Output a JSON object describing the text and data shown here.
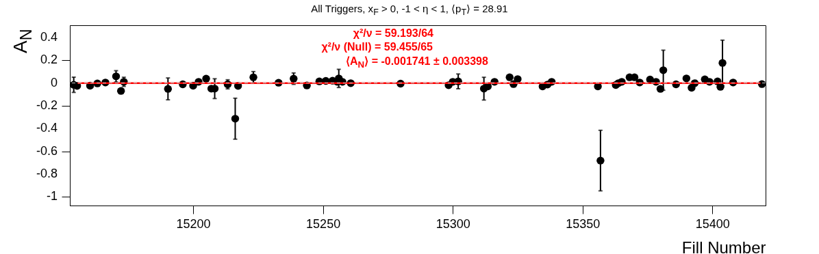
{
  "chart_data": {
    "type": "scatter",
    "title": "All Triggers, x$_{F}$ > 0, -1 < η < 1, ⟨p$_{T}$⟩ = 28.91",
    "xlabel": "Fill Number",
    "ylabel": "A$_{N}$",
    "annotations": [
      "χ²/ν = 59.193/64",
      "χ²/ν (Null) = 59.455/65",
      "⟨A$_{N}$⟩ = -0.001741 ± 0.003398"
    ],
    "xlim": [
      15152.5,
      15420.5
    ],
    "xticks": [
      15200,
      15250,
      15300,
      15350,
      15400
    ],
    "ylim": [
      -1.077,
      0.507
    ],
    "yticks": [
      -1,
      -0.8,
      -0.6,
      -0.4,
      -0.2,
      0,
      0.2,
      0.4
    ],
    "grid": false,
    "legend": false,
    "ref_lines": [
      {
        "axis": "y",
        "value": 0,
        "color": "#c8c8c8",
        "line_style": "dashed"
      }
    ],
    "series": [
      {
        "type": "scatter",
        "color": "#000000",
        "marker": "circle",
        "x": [
          15154,
          15155.3,
          15160.3,
          15163.1,
          15166.2,
          15170.3,
          15172.2,
          15173.3,
          15190.3,
          15196,
          15200,
          15202.1,
          15205,
          15207,
          15208.3,
          15213.3,
          15216.2,
          15217.3,
          15223.2,
          15232.9,
          15238.7,
          15243.8,
          15248.6,
          15251.1,
          15253.7,
          15255.5,
          15256.1,
          15257.5,
          15260.7,
          15279.9,
          15298.4,
          15300,
          15302.1,
          15312,
          15313.5,
          15316.1,
          15321.9,
          15323.4,
          15325,
          15334.6,
          15336.5,
          15338.1,
          15355.9,
          15356.9,
          15362.8,
          15363.8,
          15365.1,
          15368.1,
          15370,
          15372,
          15376,
          15378.3,
          15380,
          15381.1,
          15386,
          15390,
          15392,
          15393.2,
          15397.1,
          15398.9,
          15402,
          15403.1,
          15403.9,
          15408,
          15419.1
        ],
        "values": [
          -0.016,
          -0.026,
          -0.024,
          -0.004,
          0.004,
          0.058,
          -0.07,
          0.01,
          -0.052,
          -0.012,
          -0.024,
          0.01,
          0.038,
          -0.05,
          -0.05,
          -0.012,
          -0.314,
          -0.026,
          0.05,
          0.002,
          0.038,
          -0.022,
          0.014,
          0.018,
          0.02,
          0.01,
          0.04,
          0.01,
          -0.002,
          -0.006,
          -0.02,
          0.01,
          0.014,
          -0.05,
          -0.03,
          0.01,
          0.05,
          -0.01,
          0.034,
          -0.03,
          -0.014,
          0.01,
          -0.03,
          -0.682,
          -0.018,
          -0.002,
          0.01,
          0.05,
          0.05,
          0.004,
          0.03,
          0.01,
          -0.052,
          0.112,
          -0.012,
          0.04,
          -0.042,
          -0.002,
          0.032,
          0.01,
          0.014,
          -0.034,
          0.176,
          0.004,
          -0.01
        ],
        "errors": [
          0.067,
          null,
          null,
          null,
          null,
          0.05,
          null,
          0.04,
          0.096,
          null,
          null,
          null,
          null,
          null,
          0.087,
          0.04,
          0.18,
          null,
          0.05,
          null,
          0.05,
          null,
          null,
          null,
          null,
          null,
          0.08,
          null,
          null,
          null,
          null,
          null,
          0.065,
          0.1,
          null,
          null,
          null,
          null,
          null,
          null,
          null,
          null,
          null,
          0.266,
          null,
          null,
          null,
          null,
          null,
          null,
          null,
          null,
          null,
          0.176,
          null,
          null,
          null,
          null,
          null,
          null,
          null,
          null,
          0.2,
          null,
          null
        ]
      },
      {
        "type": "line",
        "color": "#ff0000",
        "line_style": "solid",
        "x": [
          15155.5,
          15418.5
        ],
        "values": [
          -0.001741,
          -0.001741
        ]
      }
    ]
  }
}
